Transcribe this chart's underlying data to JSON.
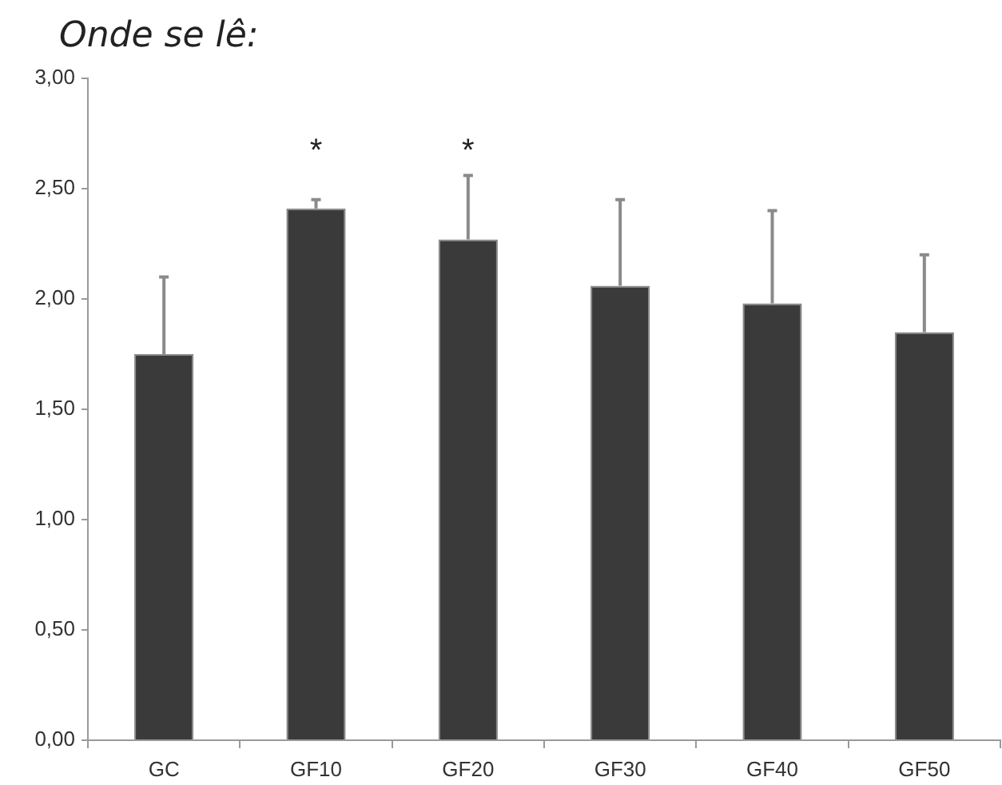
{
  "chart_data": {
    "type": "bar",
    "title": "Onde se lê:",
    "categories": [
      "GC",
      "GF10",
      "GF20",
      "GF30",
      "GF40",
      "GF50"
    ],
    "values": [
      1.75,
      2.41,
      2.27,
      2.06,
      1.98,
      1.85
    ],
    "errors": [
      [
        1.75,
        2.1
      ],
      [
        2.41,
        2.45
      ],
      [
        2.27,
        2.56
      ],
      [
        2.06,
        2.45
      ],
      [
        1.98,
        2.4
      ],
      [
        1.85,
        2.2
      ]
    ],
    "color": "#3a3a3a",
    "ylim": [
      0,
      3
    ],
    "yticks": [
      {
        "value": 0,
        "label": "0,00"
      },
      {
        "value": 0.5,
        "label": "0,50"
      },
      {
        "value": 1,
        "label": "1,00"
      },
      {
        "value": 1.5,
        "label": "1,50"
      },
      {
        "value": 2,
        "label": "2,00"
      },
      {
        "value": 2.5,
        "label": "2,50"
      },
      {
        "value": 3,
        "label": "3,00"
      }
    ],
    "annotations": [
      "*",
      "*"
    ]
  }
}
